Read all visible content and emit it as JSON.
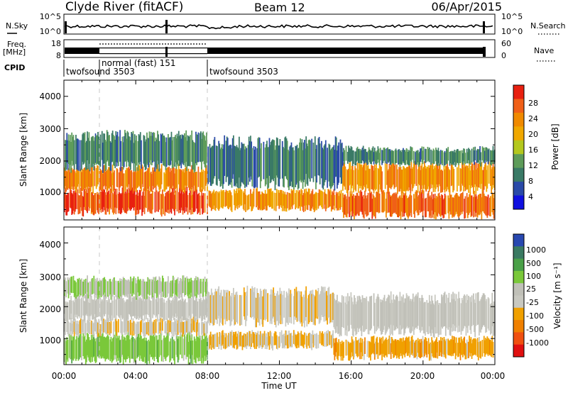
{
  "header": {
    "station": "Clyde River (fitACF)",
    "beam": "Beam 12",
    "date": "06/Apr/2015"
  },
  "noise_panel": {
    "left_label": "N.Sky",
    "right_label": "N.Search",
    "left_ticks": [
      "10^5",
      "10^0"
    ],
    "right_ticks": [
      "10^5",
      "10^0"
    ]
  },
  "freq_panel": {
    "left_label_1": "Freq.",
    "left_label_2": "[MHz]",
    "left_ticks": [
      "18",
      "8"
    ],
    "right_label": "Nave",
    "right_ticks": [
      "60",
      "0"
    ]
  },
  "cpid": {
    "label": "CPID",
    "segments": [
      {
        "start": 0.0,
        "end": 1.9,
        "name": "twofsound 3503",
        "row": 1
      },
      {
        "start": 1.9,
        "end": 7.95,
        "name": "normal (fast) 151",
        "row": 0
      },
      {
        "start": 7.95,
        "end": 24.0,
        "name": "twofsound 3503",
        "row": 1
      }
    ]
  },
  "axes": {
    "x_label": "Time UT",
    "x_ticks": [
      "00:00",
      "04:00",
      "08:00",
      "12:00",
      "16:00",
      "20:00",
      "00:00"
    ],
    "y_label": "Slant Range [km]",
    "y_ticks": [
      "1000",
      "2000",
      "3000",
      "4000"
    ]
  },
  "power_colorbar": {
    "label": "Power [dB]",
    "ticks": [
      "4",
      "8",
      "12",
      "16",
      "20",
      "24",
      "28"
    ],
    "colors": [
      "#1010e0",
      "#2a4aa8",
      "#3a7a66",
      "#5e9c5a",
      "#b4c81e",
      "#f0a800",
      "#f08a00",
      "#f06018",
      "#e82010"
    ]
  },
  "velocity_colorbar": {
    "label": "Velocity [m s⁻¹]",
    "ticks": [
      "1000",
      "500",
      "100",
      "25",
      "-25",
      "-100",
      "-500",
      "-1000"
    ],
    "colors": [
      "#2848b0",
      "#3a7a62",
      "#4aa048",
      "#7ac83a",
      "#c0c0b8",
      "#c8c8c0",
      "#f0a000",
      "#f08000",
      "#f05010",
      "#e01010"
    ]
  },
  "chart_data": [
    {
      "type": "heatmap",
      "title": "Power",
      "xlabel": "Time UT",
      "ylabel": "Slant Range [km]",
      "xlim": [
        0,
        24
      ],
      "ylim": [
        180,
        4500
      ],
      "colorbar_label": "Power [dB]",
      "colorbar_range": [
        0,
        32
      ],
      "bands": [
        {
          "t0": 0.0,
          "t1": 8.0,
          "r0": 400,
          "r1": 1100,
          "value": 28
        },
        {
          "t0": 0.0,
          "t1": 8.0,
          "r0": 1100,
          "r1": 1800,
          "value": 24
        },
        {
          "t0": 0.0,
          "t1": 8.0,
          "r0": 1800,
          "r1": 2800,
          "value": 10
        },
        {
          "t0": 8.0,
          "t1": 15.5,
          "r0": 500,
          "r1": 1100,
          "value": 22
        },
        {
          "t0": 8.0,
          "t1": 15.5,
          "r0": 1300,
          "r1": 2600,
          "value": 9
        },
        {
          "t0": 15.5,
          "t1": 24.0,
          "r0": 300,
          "r1": 1000,
          "value": 26
        },
        {
          "t0": 15.5,
          "t1": 24.0,
          "r0": 1100,
          "r1": 1900,
          "value": 22
        },
        {
          "t0": 15.5,
          "t1": 24.0,
          "r0": 1900,
          "r1": 2400,
          "value": 10
        }
      ]
    },
    {
      "type": "heatmap",
      "title": "Velocity",
      "xlabel": "Time UT",
      "ylabel": "Slant Range [km]",
      "xlim": [
        0,
        24
      ],
      "ylim": [
        180,
        4500
      ],
      "colorbar_label": "Velocity [m s⁻¹]",
      "colorbar_range": [
        -1000,
        1000
      ],
      "bands": [
        {
          "t0": 0.0,
          "t1": 8.0,
          "r0": 300,
          "r1": 1100,
          "value": 300
        },
        {
          "t0": 0.0,
          "t1": 8.0,
          "r0": 1100,
          "r1": 1600,
          "value": -150
        },
        {
          "t0": 0.0,
          "t1": 8.0,
          "r0": 1600,
          "r1": 2300,
          "value": 0
        },
        {
          "t0": 0.0,
          "t1": 8.0,
          "r0": 2300,
          "r1": 2900,
          "value": 200
        },
        {
          "t0": 8.0,
          "t1": 15.0,
          "r0": 700,
          "r1": 1200,
          "value": -200
        },
        {
          "t0": 8.0,
          "t1": 15.0,
          "r0": 1500,
          "r1": 2500,
          "value": -150
        },
        {
          "t0": 15.0,
          "t1": 24.0,
          "r0": 400,
          "r1": 1000,
          "value": -300
        },
        {
          "t0": 15.0,
          "t1": 24.0,
          "r0": 1200,
          "r1": 2300,
          "value": 0
        }
      ]
    }
  ]
}
